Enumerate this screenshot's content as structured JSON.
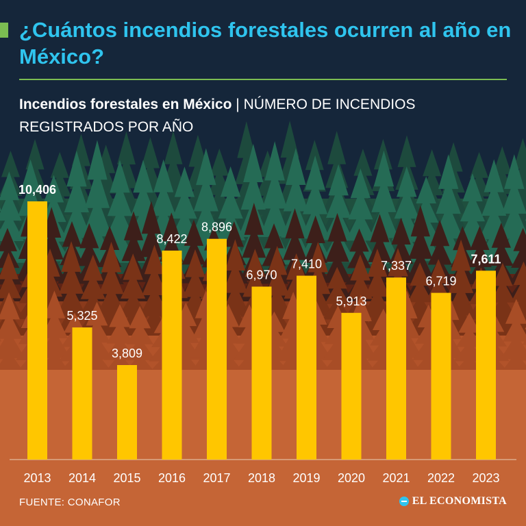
{
  "header": {
    "title": "¿Cuántos incendios forestales ocurren al año en México?",
    "subtitle_bold": "Incendios forestales en México",
    "subtitle_separator": "|",
    "subtitle_rest": "NÚMERO DE INCENDIOS REGISTRADOS POR AÑO"
  },
  "footer": {
    "source": "FUENTE: CONAFOR",
    "logo": "EL ECONOMISTA"
  },
  "colors": {
    "background": "#15263a",
    "title": "#2fc4ee",
    "accent": "#7bbd52",
    "bar": "#ffc600",
    "text": "#ffffff"
  },
  "chart_data": {
    "type": "bar",
    "title": "Incendios forestales en México",
    "subtitle": "NÚMERO DE INCENDIOS REGISTRADOS POR AÑO",
    "categories": [
      "2013",
      "2014",
      "2015",
      "2016",
      "2017",
      "2018",
      "2019",
      "2020",
      "2021",
      "2022",
      "2023"
    ],
    "values": [
      10406,
      5325,
      3809,
      8422,
      8896,
      6970,
      7410,
      5913,
      7337,
      6719,
      7611
    ],
    "value_labels": [
      "10,406",
      "5,325",
      "3,809",
      "8,422",
      "8,896",
      "6,970",
      "7,410",
      "5,913",
      "7,337",
      "6,719",
      "7,611"
    ],
    "highlighted": [
      "2013",
      "2023"
    ],
    "xlabel": "",
    "ylabel": "",
    "ylim": [
      0,
      10406
    ],
    "grid": false,
    "legend": "none"
  }
}
